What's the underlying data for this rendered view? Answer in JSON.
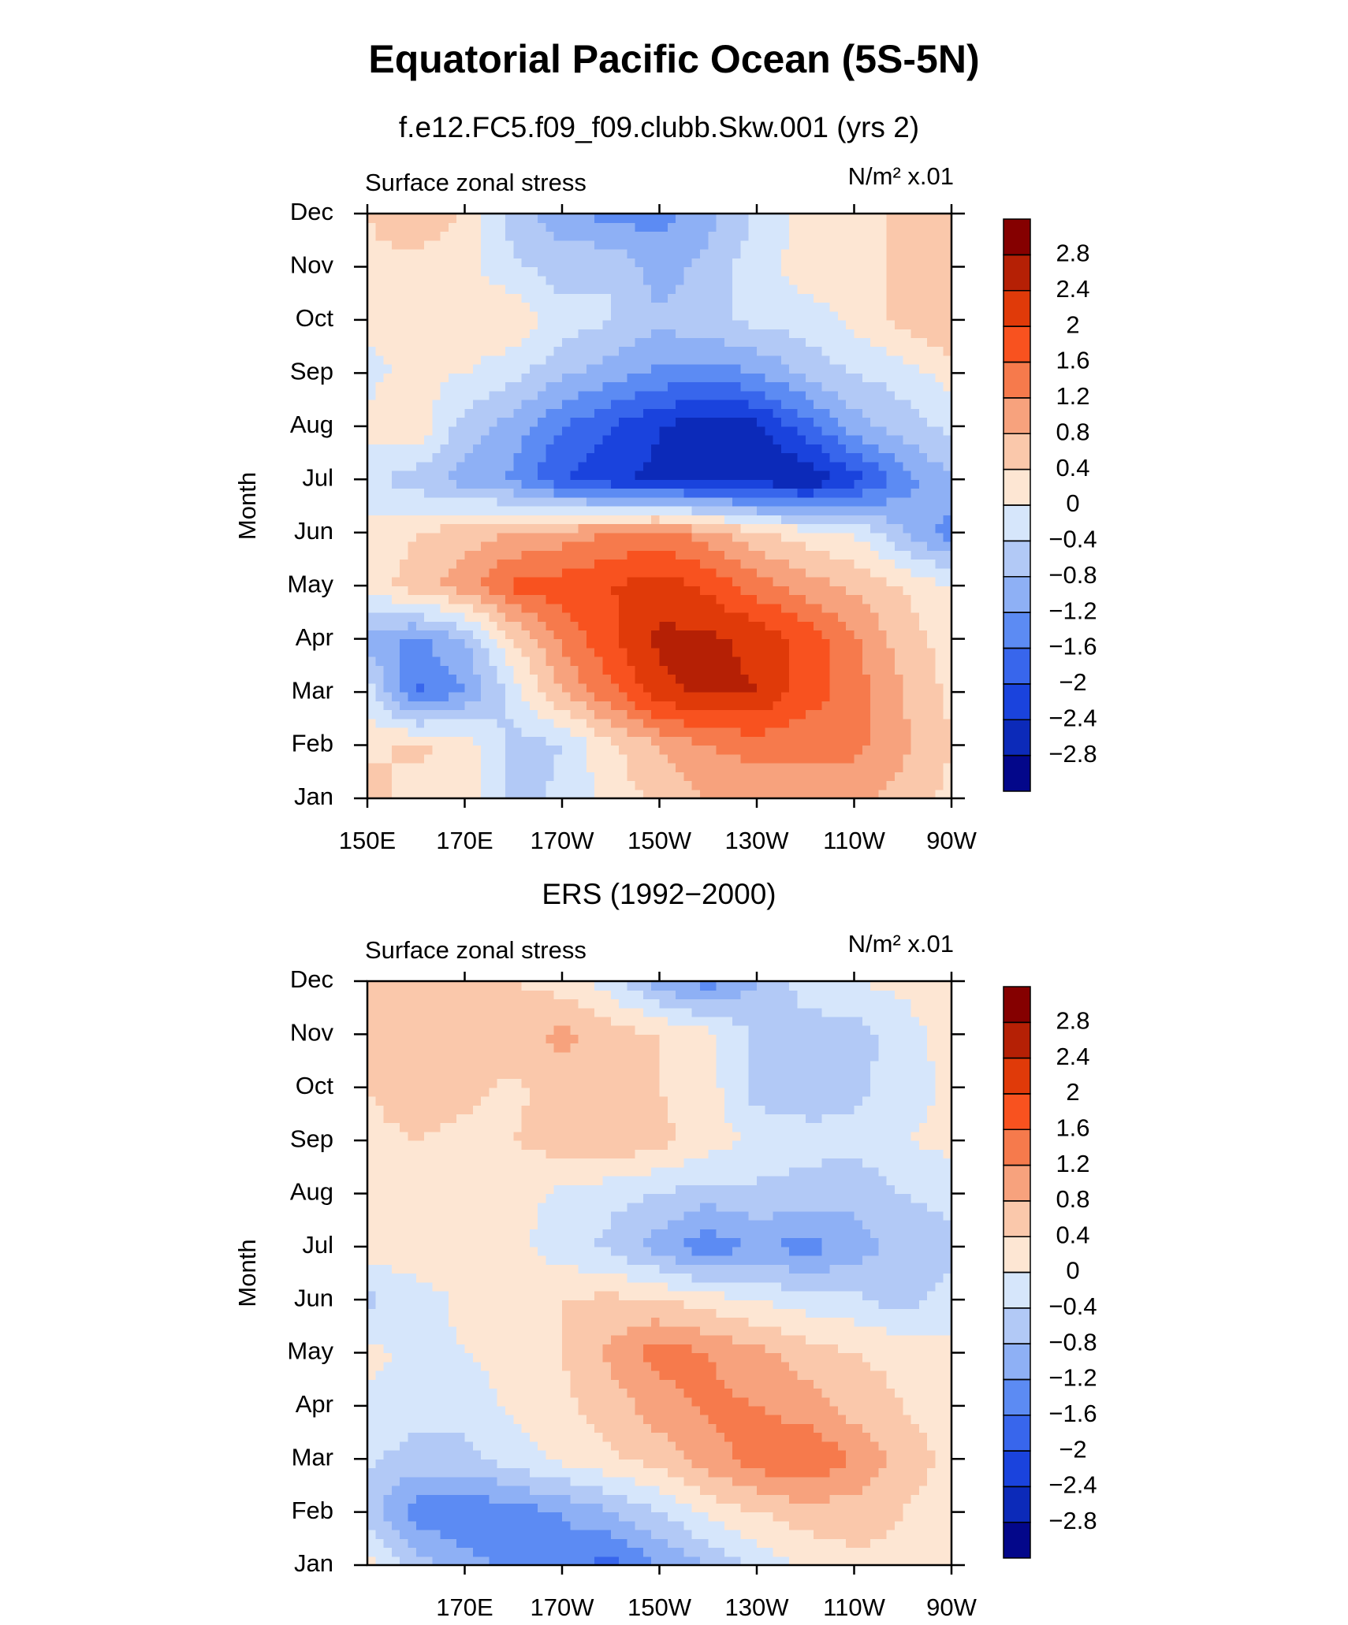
{
  "title": "Equatorial Pacific Ocean (5S-5N)",
  "chart_data": [
    {
      "type": "contour",
      "subtitle": "f.e12.FC5.f09_f09.clubb.Skw.001 (yrs 2)",
      "left_label": "Surface zonal stress",
      "right_label": "N/m² x.01",
      "y_label": "Month",
      "categories": [
        "Jan",
        "Feb",
        "Mar",
        "Apr",
        "May",
        "Jun",
        "Jul",
        "Aug",
        "Sep",
        "Oct",
        "Nov",
        "Dec"
      ],
      "x": [
        150,
        160,
        170,
        180,
        190,
        200,
        210,
        220,
        230,
        240,
        250,
        260,
        270
      ],
      "xlim": [
        150,
        270
      ],
      "xticks": [
        {
          "value": 150,
          "label": "150E"
        },
        {
          "value": 170,
          "label": "170E"
        },
        {
          "value": 190,
          "label": "170W"
        },
        {
          "value": 210,
          "label": "150W"
        },
        {
          "value": 230,
          "label": "130W"
        },
        {
          "value": 250,
          "label": "110W"
        },
        {
          "value": 270,
          "label": "90W"
        }
      ],
      "z": [
        [
          0.6,
          0.2,
          0.2,
          -0.6,
          -0.3,
          0.2,
          0.5,
          0.8,
          0.8,
          0.9,
          1.0,
          0.6,
          0.3
        ],
        [
          0.3,
          0.5,
          0.3,
          -0.6,
          -0.4,
          0.3,
          0.8,
          1.2,
          1.4,
          1.3,
          1.3,
          0.9,
          0.4
        ],
        [
          -0.2,
          -1.7,
          -1.2,
          -0.2,
          0.8,
          1.5,
          2.3,
          2.5,
          2.4,
          1.8,
          1.4,
          0.8,
          0.3
        ],
        [
          -1.0,
          -1.3,
          -0.8,
          0.4,
          1.3,
          1.9,
          2.5,
          2.5,
          2.3,
          1.9,
          1.3,
          0.6,
          0.2
        ],
        [
          0.2,
          0.6,
          1.0,
          1.7,
          1.8,
          2.0,
          2.2,
          1.9,
          1.4,
          1.0,
          0.7,
          0.4,
          0.0
        ],
        [
          0.1,
          0.4,
          0.6,
          0.8,
          1.0,
          1.2,
          1.4,
          1.0,
          0.5,
          0.2,
          0.0,
          -0.8,
          -1.4
        ],
        [
          -0.3,
          -0.6,
          -1.0,
          -1.3,
          -2.0,
          -2.3,
          -2.5,
          -2.6,
          -2.6,
          -2.8,
          -2.2,
          -1.4,
          -0.8
        ],
        [
          0.1,
          0.3,
          -0.6,
          -1.0,
          -1.6,
          -2.0,
          -2.4,
          -2.7,
          -2.5,
          -1.8,
          -1.0,
          -0.6,
          -0.3
        ],
        [
          -0.1,
          0.1,
          0.0,
          -0.3,
          -0.7,
          -1.0,
          -1.3,
          -1.4,
          -1.2,
          -0.7,
          -0.4,
          -0.2,
          0.2
        ],
        [
          0.1,
          0.2,
          0.4,
          0.3,
          -0.2,
          -0.4,
          -0.7,
          -0.5,
          -0.3,
          -0.2,
          0.1,
          0.5,
          0.8
        ],
        [
          0.3,
          0.2,
          0.1,
          -0.3,
          -0.6,
          -0.4,
          -1.1,
          -0.6,
          -0.2,
          0.2,
          0.2,
          0.5,
          0.6
        ],
        [
          0.4,
          0.8,
          0.3,
          -0.6,
          -1.0,
          -1.4,
          -1.3,
          -1.0,
          -0.3,
          0.1,
          0.2,
          0.5,
          0.5
        ]
      ],
      "levels": [
        {
          "value": -2.8,
          "label": "−2.8"
        },
        {
          "value": -2.4,
          "label": "−2.4"
        },
        {
          "value": -2,
          "label": "−2"
        },
        {
          "value": -1.6,
          "label": "−1.6"
        },
        {
          "value": -1.2,
          "label": "−1.2"
        },
        {
          "value": -0.8,
          "label": "−0.8"
        },
        {
          "value": -0.4,
          "label": "−0.4"
        },
        0,
        0.4,
        0.8,
        1.2,
        1.6,
        2,
        2.4,
        2.8
      ],
      "colors": [
        "#03078a",
        "#0c2ab9",
        "#1a43dd",
        "#3866ec",
        "#5c8bf3",
        "#8eb0f5",
        "#b2c9f6",
        "#d6e6fb",
        "#fde6d3",
        "#fac8ab",
        "#f7a27d",
        "#f67a4c",
        "#f8521f",
        "#e03a09",
        "#b52005",
        "#850000"
      ]
    },
    {
      "type": "contour",
      "subtitle": "ERS (1992−2000)",
      "left_label": "Surface zonal stress",
      "right_label": "N/m² x.01",
      "y_label": "Month",
      "categories": [
        "Jan",
        "Feb",
        "Mar",
        "Apr",
        "May",
        "Jun",
        "Jul",
        "Aug",
        "Sep",
        "Oct",
        "Nov",
        "Dec"
      ],
      "x": [
        150,
        160,
        170,
        180,
        190,
        200,
        210,
        220,
        230,
        240,
        250,
        260,
        270
      ],
      "xlim": [
        150,
        270
      ],
      "xticks": [
        {
          "value": 170,
          "label": "170E"
        },
        {
          "value": 190,
          "label": "170W"
        },
        {
          "value": 210,
          "label": "150W"
        },
        {
          "value": 230,
          "label": "130W"
        },
        {
          "value": 250,
          "label": "110W"
        },
        {
          "value": 270,
          "label": "90W"
        }
      ],
      "z": [
        [
          0.2,
          -0.6,
          -1.0,
          -1.4,
          -1.4,
          -1.8,
          -1.2,
          -0.8,
          -0.3,
          0.1,
          0.3,
          0.3,
          0.2
        ],
        [
          -0.6,
          -1.4,
          -1.6,
          -1.4,
          -1.2,
          -0.8,
          -0.4,
          0.1,
          0.4,
          0.6,
          0.6,
          0.4,
          0.2
        ],
        [
          -0.3,
          -0.6,
          -0.5,
          -0.2,
          0.1,
          0.3,
          0.6,
          1.0,
          1.4,
          1.6,
          1.2,
          0.6,
          0.3
        ],
        [
          -0.1,
          -0.2,
          -0.3,
          0.1,
          0.3,
          0.6,
          1.0,
          1.3,
          1.2,
          1.0,
          0.6,
          0.4,
          0.2
        ],
        [
          0.1,
          -0.1,
          0.0,
          0.2,
          0.4,
          0.9,
          1.4,
          1.2,
          0.9,
          0.6,
          0.4,
          0.3,
          0.1
        ],
        [
          -0.5,
          -0.2,
          0.1,
          0.2,
          0.4,
          0.5,
          0.4,
          0.2,
          0.0,
          -0.2,
          -0.3,
          -0.6,
          -0.2
        ],
        [
          0.2,
          0.3,
          0.2,
          0.1,
          -0.2,
          -0.5,
          -1.0,
          -1.5,
          -1.1,
          -1.4,
          -1.0,
          -0.7,
          -0.6
        ],
        [
          0.3,
          0.4,
          0.4,
          0.2,
          -0.1,
          -0.3,
          -0.4,
          -0.6,
          -0.5,
          -0.6,
          -0.7,
          -0.4,
          -0.2
        ],
        [
          0.3,
          0.4,
          0.3,
          0.4,
          0.6,
          0.8,
          0.5,
          0.2,
          -0.1,
          -0.2,
          -0.3,
          0.0,
          0.1
        ],
        [
          0.4,
          0.6,
          0.5,
          0.3,
          0.6,
          0.5,
          0.4,
          0.2,
          -0.6,
          -0.7,
          -0.5,
          -0.2,
          0.1
        ],
        [
          0.5,
          0.6,
          0.6,
          0.7,
          0.9,
          0.6,
          0.4,
          0.1,
          -0.5,
          -0.6,
          -0.6,
          -0.2,
          0.2
        ],
        [
          0.6,
          0.8,
          0.6,
          0.4,
          0.2,
          -0.2,
          -1.0,
          -1.4,
          -0.8,
          -0.2,
          0.0,
          0.1,
          0.3
        ]
      ],
      "levels": [
        {
          "value": -2.8,
          "label": "−2.8"
        },
        {
          "value": -2.4,
          "label": "−2.4"
        },
        {
          "value": -2,
          "label": "−2"
        },
        {
          "value": -1.6,
          "label": "−1.6"
        },
        {
          "value": -1.2,
          "label": "−1.2"
        },
        {
          "value": -0.8,
          "label": "−0.8"
        },
        {
          "value": -0.4,
          "label": "−0.4"
        },
        0,
        0.4,
        0.8,
        1.2,
        1.6,
        2,
        2.4,
        2.8
      ],
      "colors": [
        "#03078a",
        "#0c2ab9",
        "#1a43dd",
        "#3866ec",
        "#5c8bf3",
        "#8eb0f5",
        "#b2c9f6",
        "#d6e6fb",
        "#fde6d3",
        "#fac8ab",
        "#f7a27d",
        "#f67a4c",
        "#f8521f",
        "#e03a09",
        "#b52005",
        "#850000"
      ]
    }
  ]
}
